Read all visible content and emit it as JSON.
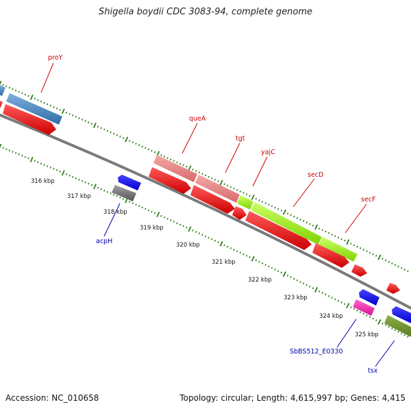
{
  "title": "Shigella boydii CDC 3083-94, complete genome",
  "footer": {
    "accession": "Accession: NC_010658",
    "summary": "Topology: circular; Length: 4,615,997 bp; Genes: 4,415"
  },
  "colors": {
    "backbone": "#8a8a8a",
    "tick": "#2e7d1a",
    "label_red": "#cc0000",
    "label_blue": "#0000aa"
  },
  "scale_labels": [
    "316 kbp",
    "317 kbp",
    "318 kbp",
    "319 kbp",
    "320 kbp",
    "321 kbp",
    "322 kbp",
    "323 kbp",
    "324 kbp",
    "325 kbp"
  ],
  "gene_labels": [
    {
      "name": "proY",
      "color": "red"
    },
    {
      "name": "queA",
      "color": "red"
    },
    {
      "name": "tgt",
      "color": "red"
    },
    {
      "name": "yajC",
      "color": "red"
    },
    {
      "name": "secD",
      "color": "red"
    },
    {
      "name": "secF",
      "color": "red"
    },
    {
      "name": "acpH",
      "color": "blue"
    },
    {
      "name": "SbBS512_E0330",
      "color": "blue"
    },
    {
      "name": "tsx",
      "color": "blue"
    }
  ]
}
